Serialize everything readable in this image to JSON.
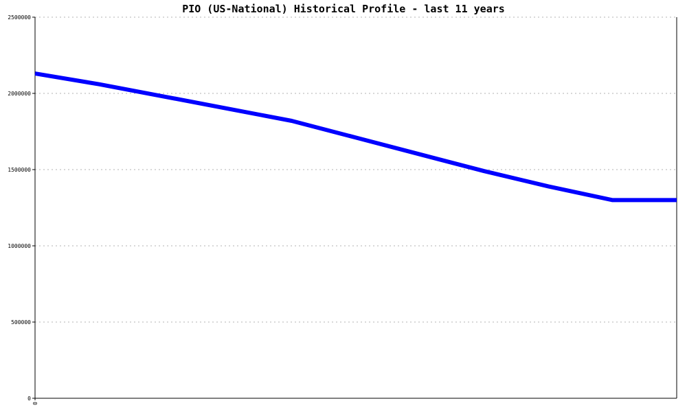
{
  "chart_data": {
    "type": "line",
    "title": "PIO (US-National) Historical Profile - last 11 years",
    "xlabel": "",
    "ylabel": "",
    "x_tick_labels": [
      "0"
    ],
    "y_ticks": [
      0,
      500000,
      1000000,
      1500000,
      2000000,
      2500000
    ],
    "y_tick_labels": [
      "0",
      "500000",
      "1000000",
      "1500000",
      "2000000",
      "2500000"
    ],
    "ylim": [
      0,
      2500000
    ],
    "grid": true,
    "legend": "none",
    "series": [
      {
        "color": "#0000ff",
        "x": [
          0,
          1,
          2,
          3,
          4,
          5,
          6,
          7,
          8,
          9,
          10
        ],
        "values": [
          2130000,
          2060000,
          1980000,
          1900000,
          1820000,
          1710000,
          1600000,
          1490000,
          1390000,
          1300000,
          1300000
        ]
      }
    ]
  },
  "colors": {
    "line": "#0000ff",
    "grid": "#b0b0b0",
    "axis": "#000000"
  }
}
